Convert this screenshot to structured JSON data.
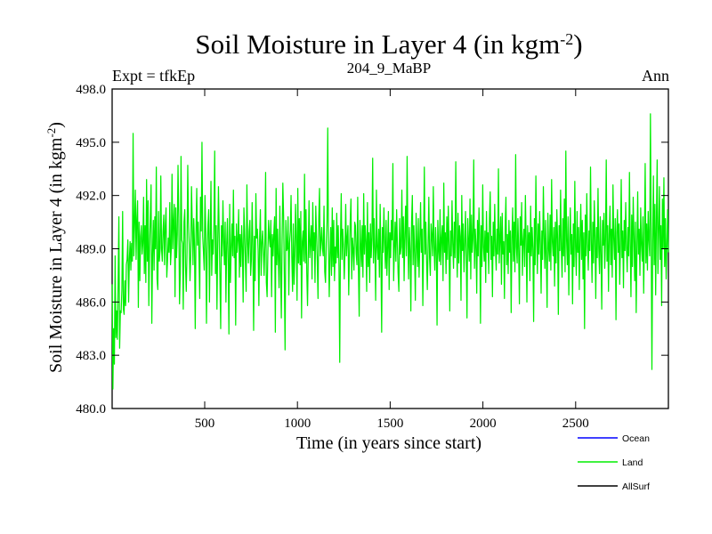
{
  "chart_data": {
    "type": "line",
    "title_main": "Soil Moisture in Layer 4 (in kgm",
    "title_sup": "-2",
    "title_close": ")",
    "subtitle_left": "Expt = tfkEp",
    "subtitle_center": "204_9_MaBP",
    "subtitle_right": "Ann",
    "xlabel": "Time (in years since start)",
    "ylabel_main": "Soil Moisture in Layer 4 (in kgm",
    "ylabel_sup": "-2",
    "ylabel_close": ")",
    "xlim": [
      1,
      3000
    ],
    "ylim": [
      480.0,
      498.0
    ],
    "x_ticks": [
      500,
      1000,
      1500,
      2000,
      2500
    ],
    "x_tick_labels": [
      "500",
      "1000",
      "1500",
      "2000",
      "2500"
    ],
    "y_ticks": [
      480,
      483,
      486,
      489,
      492,
      495,
      498
    ],
    "y_tick_labels": [
      "480.0",
      "483.0",
      "486.0",
      "489.0",
      "492.0",
      "495.0",
      "498.0"
    ],
    "legend_position": "bottom-right",
    "series": [
      {
        "name": "Ocean",
        "color": "#0000ff",
        "values": []
      },
      {
        "name": "Land",
        "color": "#00ee00",
        "x_start": 1,
        "x_end": 3000,
        "values": [
          487.0,
          481.1,
          484.5,
          482.5,
          488.6,
          484.0,
          485.5,
          483.9,
          487.0,
          490.8,
          483.4,
          485.5,
          485.4,
          486.7,
          491.1,
          485.6,
          485.3,
          487.2,
          485.8,
          488.1,
          488.4,
          489.5,
          486.0,
          488.4,
          489.4,
          487.8,
          489.3,
          488.3,
          495.5,
          488.6,
          490.5,
          492.3,
          488.4,
          490.7,
          491.7,
          485.7,
          490.5,
          487.2,
          489.7,
          490.3,
          488.7,
          489.3,
          491.9,
          487.6,
          490.3,
          487.1,
          492.9,
          488.3,
          491.7,
          485.8,
          489.1,
          490.8,
          492.6,
          484.8,
          488.7,
          490.6,
          487.8,
          490.8,
          489.0,
          493.6,
          487.3,
          486.7,
          491.1,
          488.3,
          488.9,
          493.1,
          489.0,
          488.3,
          490.0,
          490.9,
          488.1,
          490.3,
          491.3,
          487.4,
          488.4,
          489.6,
          488.8,
          491.6,
          488.1,
          489.0,
          493.2,
          489.0,
          490.5,
          491.5,
          486.3,
          491.3,
          488.5,
          489.8,
          493.7,
          490.8,
          485.9,
          487.6,
          494.2,
          489.5,
          489.3,
          485.6,
          490.5,
          491.2,
          488.0,
          486.6,
          488.8,
          493.7,
          490.5,
          489.2,
          487.2,
          488.6,
          492.5,
          490.4,
          488.1,
          490.7,
          489.2,
          484.5,
          489.8,
          492.4,
          489.2,
          490.5,
          488.5,
          486.2,
          491.9,
          490.0,
          495.0,
          489.7,
          488.8,
          487.8,
          492.0,
          490.1,
          484.8,
          488.7,
          490.3,
          491.2,
          486.0,
          489.6,
          492.8,
          487.5,
          489.5,
          488.7,
          490.4,
          494.5,
          487.6,
          490.3,
          485.6,
          489.1,
          492.5,
          489.9,
          487.3,
          484.5,
          490.3,
          488.6,
          491.7,
          489.4,
          488.1,
          490.5,
          486.0,
          489.2,
          490.7,
          488.3,
          484.2,
          491.5,
          487.1,
          489.0,
          490.4,
          488.6,
          492.3,
          488.5,
          489.7,
          484.7,
          490.4,
          488.8,
          489.5,
          491.2,
          487.4,
          489.8,
          488.0,
          490.3,
          489.1,
          486.0,
          491.3,
          490.0,
          488.3,
          486.6,
          492.6,
          489.4,
          488.2,
          490.0,
          490.6,
          487.5,
          488.4,
          491.6,
          489.1,
          484.4,
          489.7,
          487.2,
          492.1,
          489.6,
          490.1,
          488.9,
          485.8,
          489.5,
          491.2,
          487.5,
          489.3,
          490.0,
          488.9,
          487.5,
          489.3,
          493.3,
          487.1,
          486.3,
          488.8,
          490.6,
          489.6,
          489.1,
          490.6,
          486.3,
          489.8,
          488.6,
          489.9,
          490.8,
          484.3,
          492.4,
          488.1,
          490.1,
          488.4,
          486.8,
          491.4,
          488.0,
          485.1,
          489.4,
          492.7,
          490.9,
          487.5,
          483.3,
          490.6,
          488.9,
          489.0,
          490.8,
          486.4,
          489.3,
          490.0,
          492.0,
          488.5,
          486.6,
          490.4,
          487.0,
          488.6,
          491.5,
          489.5,
          486.1,
          492.4,
          488.2,
          490.7,
          488.1,
          491.1,
          485.1,
          489.4,
          490.0,
          488.3,
          493.2,
          488.2,
          491.2,
          487.6,
          485.8,
          488.8,
          491.7,
          488.5,
          489.3,
          490.3,
          487.3,
          491.6,
          488.9,
          489.9,
          487.1,
          491.4,
          489.8,
          488.3,
          486.2,
          490.7,
          492.4,
          488.6,
          489.4,
          490.2,
          489.0,
          488.6,
          491.4,
          487.7,
          487.1,
          489.3,
          490.5,
          495.8,
          489.1,
          486.3,
          488.7,
          490.2,
          487.5,
          491.3,
          488.0,
          490.6,
          487.2,
          489.1,
          488.2,
          491.0,
          488.5,
          490.3,
          488.0,
          482.6,
          489.5,
          492.1,
          488.4,
          490.1,
          489.2,
          487.3,
          488.8,
          491.5,
          488.6,
          489.6,
          490.3,
          486.4,
          488.8,
          490.5,
          491.8,
          487.3,
          489.6,
          489.0,
          487.8,
          490.5,
          490.3,
          488.7,
          488.1,
          491.9,
          487.8,
          485.2,
          490.6,
          489.3,
          488.0,
          490.3,
          487.4,
          492.1,
          488.7,
          490.3,
          489.4,
          486.6,
          491.6,
          488.0,
          489.9,
          487.1,
          490.4,
          488.5,
          489.6,
          494.1,
          488.2,
          490.7,
          488.9,
          486.1,
          492.3,
          489.1,
          488.4,
          490.1,
          487.4,
          491.5,
          488.7,
          484.3,
          490.2,
          488.8,
          491.3,
          489.4,
          487.9,
          490.6,
          487.5,
          489.1,
          491.1,
          486.7,
          489.9,
          488.5,
          490.6,
          489.5,
          493.8,
          487.2,
          489.0,
          490.5,
          488.3,
          491.2,
          489.3,
          487.6,
          486.6,
          490.7,
          488.7,
          489.1,
          492.3,
          488.5,
          490.8,
          487.2,
          489.8,
          491.4,
          488.6,
          494.2,
          489.7,
          487.3,
          490.2,
          488.9,
          485.5,
          490.5,
          492.0,
          488.1,
          490.3,
          488.7,
          486.1,
          491.0,
          489.3,
          488.0,
          490.7,
          487.4,
          489.5,
          491.6,
          488.8,
          490.1,
          485.8,
          489.2,
          493.6,
          488.7,
          490.5,
          488.4,
          486.7,
          489.1,
          491.9,
          488.5,
          487.5,
          490.4,
          489.7,
          488.6,
          492.5,
          489.1,
          487.8,
          490.2,
          488.9,
          484.7,
          490.6,
          489.0,
          488.3,
          491.2,
          488.1,
          489.6,
          490.3,
          487.2,
          492.7,
          488.8,
          489.9,
          487.6,
          490.8,
          488.4,
          491.4,
          489.2,
          485.5,
          490.0,
          488.6,
          491.7,
          489.3,
          487.9,
          490.5,
          488.5,
          493.9,
          489.6,
          487.4,
          491.0,
          488.2,
          490.3,
          489.7,
          486.1,
          492.0,
          488.9,
          490.4,
          487.7,
          489.3,
          491.1,
          488.6,
          485.1,
          490.7,
          489.4,
          488.3,
          491.8,
          487.3,
          490.9,
          488.8,
          489.6,
          494.0,
          487.9,
          490.1,
          489.2,
          486.5,
          490.6,
          488.6,
          491.3,
          489.8,
          484.8,
          490.3,
          488.0,
          492.6,
          489.1,
          488.3,
          490.0,
          487.1,
          491.1,
          488.8,
          489.9,
          487.6,
          490.7,
          492.2,
          488.4,
          489.7,
          486.3,
          490.5,
          488.6,
          491.5,
          489.0,
          487.8,
          490.1,
          488.7,
          493.5,
          488.2,
          489.5,
          490.8,
          487.0,
          491.0,
          488.7,
          489.4,
          486.2,
          490.2,
          491.9,
          488.1,
          489.8,
          487.6,
          490.6,
          488.8,
          490.0,
          485.4,
          489.6,
          491.3,
          488.3,
          490.5,
          487.7,
          494.3,
          489.1,
          488.2,
          490.7,
          488.9,
          485.9,
          490.8,
          489.2,
          491.6,
          487.5,
          489.4,
          490.1,
          488.0,
          492.0,
          489.5,
          486.0,
          490.3,
          488.8,
          489.9,
          487.2,
          491.4,
          488.6,
          490.2,
          489.0,
          484.9,
          490.7,
          488.1,
          493.1,
          489.8,
          487.6,
          490.4,
          488.7,
          491.1,
          489.3,
          486.5,
          490.0,
          488.4,
          492.5,
          489.7,
          487.9,
          490.6,
          488.5,
          485.7,
          491.0,
          489.1,
          488.3,
          490.9,
          487.8,
          492.9,
          489.4,
          488.6,
          490.2,
          486.9,
          490.5,
          488.2,
          491.2,
          489.6,
          485.3,
          490.3,
          488.9,
          492.3,
          489.0,
          487.4,
          490.7,
          488.6,
          491.8,
          487.7,
          494.5,
          489.5,
          488.1,
          490.8,
          486.4,
          489.2,
          491.3,
          488.7,
          489.8,
          485.9,
          490.4,
          488.0,
          492.8,
          489.1,
          487.5,
          491.1,
          488.8,
          490.2,
          486.7,
          489.6,
          491.5,
          488.4,
          490.6,
          487.3,
          489.9,
          484.5,
          490.9,
          488.6,
          492.1,
          489.3,
          487.8,
          490.0,
          488.9,
          493.6,
          489.4,
          487.1,
          490.5,
          488.2,
          491.7,
          489.7,
          486.2,
          490.2,
          488.5,
          492.4,
          489.0,
          487.6,
          490.8,
          488.7,
          485.6,
          490.6,
          489.2,
          491.0,
          487.9,
          489.5,
          494.0,
          488.3,
          490.3,
          486.6,
          489.8,
          491.4,
          488.1,
          490.1,
          487.4,
          492.6,
          489.6,
          488.4,
          490.7,
          485.0,
          489.9,
          491.2,
          488.8,
          490.4,
          487.0,
          489.3,
          492.9,
          488.5,
          490.0,
          486.8,
          490.6,
          488.9,
          491.6,
          489.1,
          487.7,
          490.2,
          488.6,
          493.3,
          489.4,
          486.3,
          490.9,
          488.0,
          491.9,
          489.7,
          487.2,
          490.5,
          485.4,
          489.0,
          492.2,
          488.7,
          490.1,
          487.5,
          491.3,
          489.2,
          488.3,
          490.8,
          486.5,
          489.6,
          493.8,
          488.2,
          490.4,
          487.8,
          491.1,
          489.5,
          488.6,
          496.6,
          490.0,
          482.2,
          489.3,
          493.1,
          488.1,
          491.5,
          486.4,
          490.6,
          494.0,
          487.6,
          489.9,
          492.5,
          488.4,
          490.3,
          485.8,
          491.8,
          489.0,
          493.0,
          488.0,
          490.7,
          487.3,
          489.2,
          491.2,
          488.8
        ]
      },
      {
        "name": "AllSurf",
        "color": "#000000",
        "values": []
      }
    ]
  }
}
